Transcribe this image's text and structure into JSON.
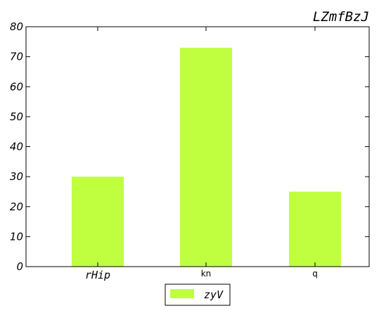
{
  "chart_data": {
    "type": "bar",
    "title": "LZmfBzJ",
    "xlabel": "",
    "ylabel": "",
    "categories": [
      "rHip",
      "kn",
      "q"
    ],
    "series": [
      {
        "name": "zyV",
        "values": [
          30,
          73,
          25
        ],
        "color": "#bfff40"
      }
    ],
    "ylim": [
      0,
      80
    ],
    "yticks": [
      0,
      10,
      20,
      30,
      40,
      50,
      60,
      70,
      80
    ],
    "grid": false,
    "legend_position": "bottom-center"
  }
}
